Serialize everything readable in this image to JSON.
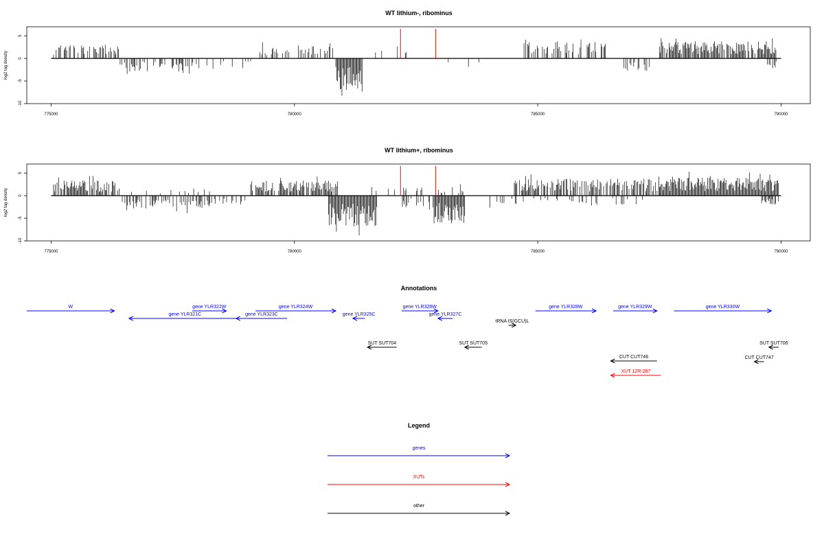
{
  "colors": {
    "gene": "#0000ff",
    "xut": "#ff0000",
    "other": "#000000",
    "marker": "#ff0000",
    "bars": "#000000"
  },
  "chart_data": [
    {
      "type": "bar",
      "title": "WT lithium-, ribominus",
      "ylabel": "log2 tag density",
      "xlim": [
        774500,
        790600
      ],
      "ylim": [
        -10,
        7
      ],
      "xticks": [
        775000,
        780000,
        785000,
        790000
      ],
      "yticks": [
        -10,
        -5,
        0,
        5
      ],
      "marker_lines": [
        782180,
        782900
      ],
      "series": [
        {
          "sign": 1,
          "segments": [
            {
              "start": 775050,
              "end": 776400,
              "density": 0.5,
              "amp": 3.0
            },
            {
              "start": 779200,
              "end": 780800,
              "density": 0.35,
              "amp": 2.8
            },
            {
              "start": 781000,
              "end": 782600,
              "density": 0.03,
              "amp": 2.0
            },
            {
              "start": 784700,
              "end": 786400,
              "density": 0.55,
              "amp": 3.6
            },
            {
              "start": 787500,
              "end": 789900,
              "density": 0.9,
              "amp": 3.8
            }
          ]
        },
        {
          "sign": -1,
          "segments": [
            {
              "start": 776400,
              "end": 778100,
              "density": 0.35,
              "amp": 2.8
            },
            {
              "start": 778200,
              "end": 779300,
              "density": 0.12,
              "amp": 2.3
            },
            {
              "start": 780850,
              "end": 781400,
              "density": 1.0,
              "amp": 7.5
            },
            {
              "start": 783000,
              "end": 783800,
              "density": 0.08,
              "amp": 2.0
            },
            {
              "start": 786700,
              "end": 787300,
              "density": 0.3,
              "amp": 2.8
            },
            {
              "start": 789700,
              "end": 789950,
              "density": 0.6,
              "amp": 2.2
            }
          ]
        }
      ]
    },
    {
      "type": "bar",
      "title": "WT lithium+, ribominus",
      "ylabel": "log2 tag density",
      "xlim": [
        774500,
        790600
      ],
      "ylim": [
        -10,
        7
      ],
      "xticks": [
        775000,
        780000,
        785000,
        790000
      ],
      "yticks": [
        -10,
        -5,
        0,
        5
      ],
      "marker_lines": [
        782180,
        782900
      ],
      "series": [
        {
          "sign": 1,
          "segments": [
            {
              "start": 775050,
              "end": 776400,
              "density": 0.8,
              "amp": 3.4
            },
            {
              "start": 776400,
              "end": 779100,
              "density": 0.12,
              "amp": 1.8
            },
            {
              "start": 779100,
              "end": 780900,
              "density": 0.9,
              "amp": 3.4
            },
            {
              "start": 781500,
              "end": 783500,
              "density": 0.2,
              "amp": 2.0
            },
            {
              "start": 784500,
              "end": 787500,
              "density": 0.75,
              "amp": 3.8
            },
            {
              "start": 787500,
              "end": 789950,
              "density": 1.0,
              "amp": 4.0
            }
          ]
        },
        {
          "sign": -1,
          "segments": [
            {
              "start": 776300,
              "end": 778300,
              "density": 0.55,
              "amp": 2.9
            },
            {
              "start": 778300,
              "end": 779100,
              "density": 0.15,
              "amp": 2.0
            },
            {
              "start": 780700,
              "end": 781700,
              "density": 1.0,
              "amp": 6.8
            },
            {
              "start": 782200,
              "end": 782800,
              "density": 0.5,
              "amp": 2.8
            },
            {
              "start": 782850,
              "end": 783500,
              "density": 1.0,
              "amp": 6.2
            },
            {
              "start": 784000,
              "end": 787400,
              "density": 0.2,
              "amp": 2.0
            },
            {
              "start": 789600,
              "end": 789950,
              "density": 0.7,
              "amp": 2.0
            }
          ]
        }
      ]
    }
  ],
  "annotations": {
    "title": "Annotations",
    "items": [
      {
        "label": "W",
        "type": "gene",
        "start": 774500,
        "end": 776300,
        "strand": "+",
        "row": 0
      },
      {
        "label": "gene YLR321C",
        "type": "gene",
        "start": 776600,
        "end": 778900,
        "strand": "-",
        "row": 1
      },
      {
        "label": "gene YLR322W",
        "type": "gene",
        "start": 777900,
        "end": 778600,
        "strand": "+",
        "row": 0
      },
      {
        "label": "gene YLR323C",
        "type": "gene",
        "start": 778800,
        "end": 779850,
        "strand": "-",
        "row": 1
      },
      {
        "label": "gene YLR324W",
        "type": "gene",
        "start": 779200,
        "end": 780850,
        "strand": "+",
        "row": 0
      },
      {
        "label": "gene YLR325C",
        "type": "gene",
        "start": 781200,
        "end": 781450,
        "strand": "-",
        "row": 1
      },
      {
        "label": "gene YLR326W",
        "type": "gene",
        "start": 782200,
        "end": 782950,
        "strand": "+",
        "row": 0
      },
      {
        "label": "gene YLR327C",
        "type": "gene",
        "start": 782950,
        "end": 783250,
        "strand": "-",
        "row": 1
      },
      {
        "label": "tRNA tS(GCU)L",
        "type": "other",
        "start": 784400,
        "end": 784550,
        "strand": "+",
        "row": 2
      },
      {
        "label": "gene YLR328W",
        "type": "gene",
        "start": 784950,
        "end": 786200,
        "strand": "+",
        "row": 0
      },
      {
        "label": "gene YLR329W",
        "type": "gene",
        "start": 786550,
        "end": 787450,
        "strand": "+",
        "row": 0
      },
      {
        "label": "gene YLR330W",
        "type": "gene",
        "start": 787800,
        "end": 789800,
        "strand": "+",
        "row": 0
      },
      {
        "label": "SUT SUT704",
        "type": "other",
        "start": 781500,
        "end": 782100,
        "strand": "-",
        "row": 3
      },
      {
        "label": "SUT SUT705",
        "type": "other",
        "start": 783500,
        "end": 783850,
        "strand": "-",
        "row": 3
      },
      {
        "label": "SUT SUT706",
        "type": "other",
        "start": 789750,
        "end": 789950,
        "strand": "-",
        "row": 3
      },
      {
        "label": "CUT CUT746",
        "type": "other",
        "start": 786500,
        "end": 787450,
        "strand": "-",
        "row": 4
      },
      {
        "label": "CUT CUT747",
        "type": "other",
        "start": 789450,
        "end": 789650,
        "strand": "-",
        "row": 5
      },
      {
        "label": "XUT 12R-287",
        "type": "xut",
        "start": 786500,
        "end": 787530,
        "strand": "-",
        "row": 6
      }
    ]
  },
  "legend": {
    "title": "Legend",
    "items": [
      {
        "label": "genes",
        "type": "gene"
      },
      {
        "label": "XUTs",
        "type": "xut"
      },
      {
        "label": "other",
        "type": "other"
      }
    ]
  }
}
